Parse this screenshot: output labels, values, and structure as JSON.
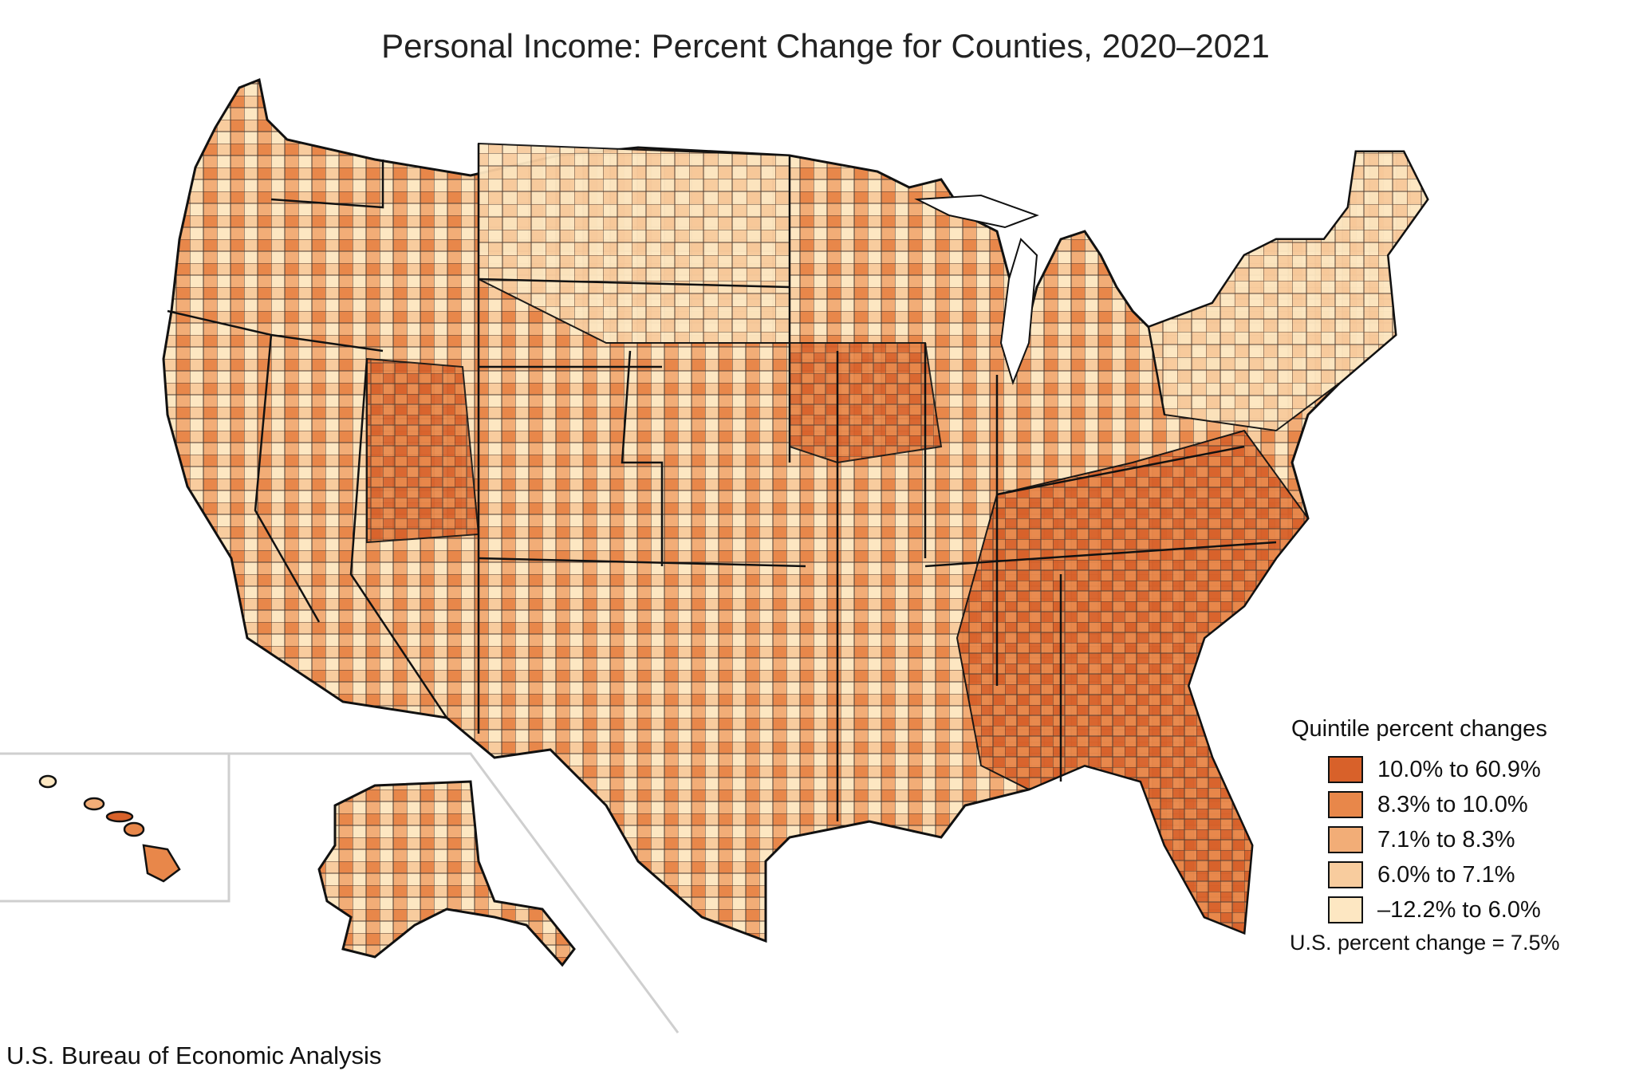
{
  "title": "Personal Income: Percent Change for Counties, 2020–2021",
  "legend": {
    "title": "Quintile percent changes",
    "classes": [
      {
        "label": "10.0% to 60.9%",
        "color": "#d8612a"
      },
      {
        "label": "8.3% to 10.0%",
        "color": "#e8874a"
      },
      {
        "label": "7.1% to 8.3%",
        "color": "#f2ad77"
      },
      {
        "label": "6.0% to 7.1%",
        "color": "#f8cc9e"
      },
      {
        "label": "–12.2% to 6.0%",
        "color": "#fde7c2"
      }
    ],
    "us_change": "U.S. percent change = 7.5%"
  },
  "footer": "U.S. Bureau of Economic Analysis"
}
